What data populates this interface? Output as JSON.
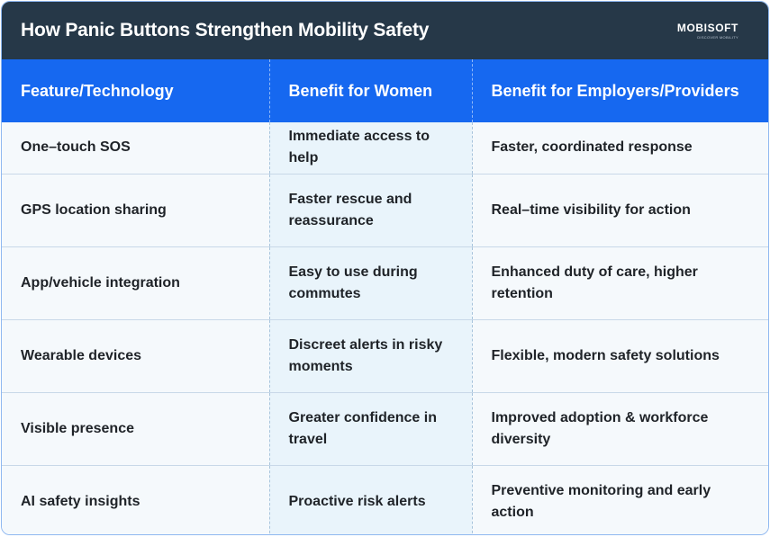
{
  "header": {
    "title": "How Panic Buttons Strengthen Mobility Safety",
    "logo": "MOBISOFT",
    "logo_tagline": "DISCOVER MOBILITY"
  },
  "table": {
    "columns": [
      "Feature/Technology",
      "Benefit for Women",
      "Benefit for Employers/Providers"
    ],
    "rows": [
      [
        "One–touch SOS",
        "Immediate access to help",
        "Faster, coordinated response"
      ],
      [
        "GPS location sharing",
        "Faster rescue and reassurance",
        "Real–time visibility for action"
      ],
      [
        "App/vehicle integration",
        "Easy to use during commutes",
        "Enhanced duty of care, higher retention"
      ],
      [
        "Wearable devices",
        "Discreet alerts in risky moments",
        "Flexible, modern safety solutions"
      ],
      [
        "Visible presence",
        "Greater confidence in travel",
        "Improved adoption & workforce diversity"
      ],
      [
        "AI safety insights",
        "Proactive risk alerts",
        "Preventive monitoring and early action"
      ]
    ]
  },
  "colors": {
    "title_bar": "#263848",
    "header_row": "#1668f0",
    "middle_column": "#e9f4fb"
  }
}
